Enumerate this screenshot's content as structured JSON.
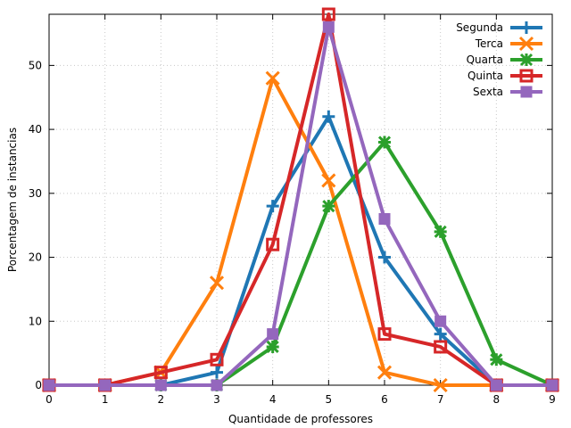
{
  "chart_data": {
    "type": "line",
    "xlabel": "Quantidade de professores",
    "ylabel": "Porcentagem de instancias",
    "xlim": [
      0,
      9
    ],
    "ylim": [
      0,
      58
    ],
    "xticks": [
      "0",
      "1",
      "2",
      "3",
      "4",
      "5",
      "6",
      "7",
      "8",
      "9"
    ],
    "yticks": [
      "0",
      "10",
      "20",
      "30",
      "40",
      "50"
    ],
    "grid": true,
    "legend_position": "top-right",
    "x": [
      0,
      1,
      2,
      3,
      4,
      5,
      6,
      7,
      8,
      9
    ],
    "series": [
      {
        "name": "Segunda",
        "color": "#1f77b4",
        "marker": "plus",
        "values": [
          0,
          0,
          0,
          2,
          28,
          42,
          20,
          8,
          0,
          0
        ]
      },
      {
        "name": "Terca",
        "color": "#ff7f0e",
        "marker": "x",
        "values": [
          0,
          0,
          2,
          16,
          48,
          32,
          2,
          0,
          0,
          0
        ]
      },
      {
        "name": "Quarta",
        "color": "#2ca02c",
        "marker": "star",
        "values": [
          0,
          0,
          0,
          0,
          6,
          28,
          38,
          24,
          4,
          0
        ]
      },
      {
        "name": "Quinta",
        "color": "#d62728",
        "marker": "square-open",
        "values": [
          0,
          0,
          2,
          4,
          22,
          58,
          8,
          6,
          0,
          0
        ]
      },
      {
        "name": "Sexta",
        "color": "#9467bd",
        "marker": "square-filled",
        "values": [
          0,
          0,
          0,
          0,
          8,
          56,
          26,
          10,
          0,
          0
        ]
      }
    ]
  }
}
